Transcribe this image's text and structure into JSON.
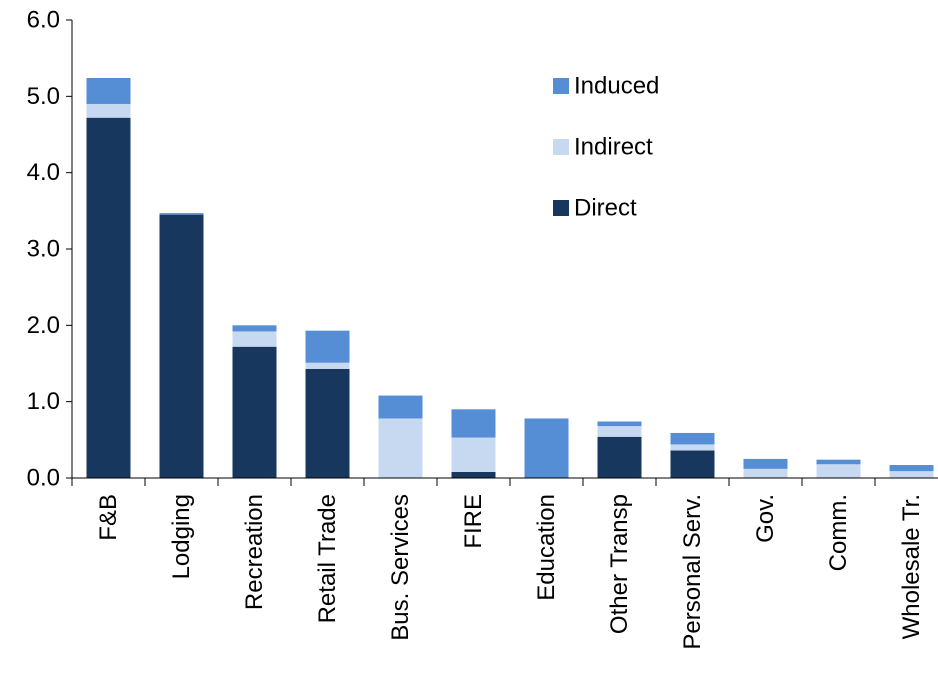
{
  "chart_data": {
    "type": "bar",
    "stacked": true,
    "title": "",
    "xlabel": "",
    "ylabel": "",
    "ylim": [
      0,
      6
    ],
    "y_ticks": [
      "0.0",
      "1.0",
      "2.0",
      "3.0",
      "4.0",
      "5.0",
      "6.0"
    ],
    "grid": false,
    "legend_position": "top-right",
    "categories": [
      "F&B",
      "Lodging",
      "Recreation",
      "Retail Trade",
      "Bus. Services",
      "FIRE",
      "Education",
      "Other Transp",
      "Personal Serv.",
      "Gov.",
      "Comm.",
      "Wholesale Tr."
    ],
    "series": [
      {
        "name": "Direct",
        "color": "#17375e",
        "values": [
          4.72,
          3.45,
          1.72,
          1.43,
          0.0,
          0.08,
          0.0,
          0.54,
          0.36,
          0.0,
          0.0,
          0.0
        ]
      },
      {
        "name": "Indirect",
        "color": "#c6d9f1",
        "values": [
          0.18,
          0.0,
          0.2,
          0.08,
          0.78,
          0.45,
          0.0,
          0.14,
          0.08,
          0.12,
          0.18,
          0.09
        ]
      },
      {
        "name": "Induced",
        "color": "#558ed5",
        "values": [
          0.34,
          0.02,
          0.08,
          0.42,
          0.3,
          0.37,
          0.78,
          0.06,
          0.15,
          0.13,
          0.06,
          0.08
        ]
      }
    ],
    "legend_order": [
      "Induced",
      "Indirect",
      "Direct"
    ]
  }
}
